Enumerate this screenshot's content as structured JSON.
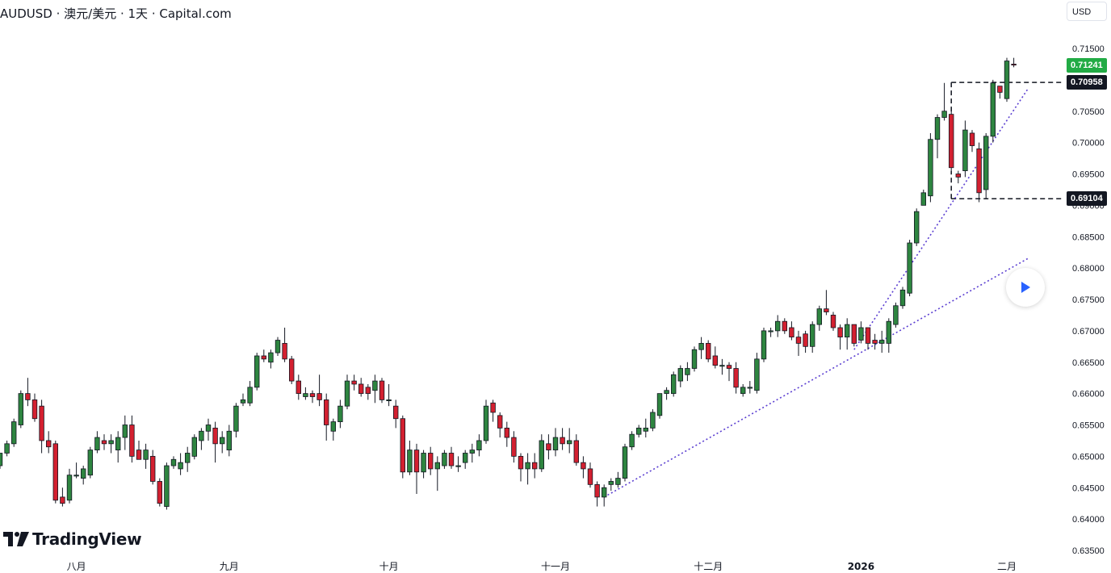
{
  "header": {
    "title": "AUDUSD · 澳元/美元 · 1天 · Capital.com",
    "currency": "USD"
  },
  "brand": {
    "logo_text": "TradingView"
  },
  "price_tags": {
    "last_price": "0.71241",
    "upper_level": "0.70958",
    "lower_level": "0.69104"
  },
  "colors": {
    "up": "#2e8540",
    "down": "#d32030",
    "last_price_tag": "#22ab45",
    "level_tag": "#131722",
    "trendline": "#5b3fd1",
    "play_button": "#2962ff"
  },
  "chart_data": {
    "type": "candlestick",
    "title": "AUDUSD · 澳元/美元 · 1天 · Capital.com",
    "y_axis": {
      "ticks": [
        "0.71500",
        "0.71000",
        "0.70500",
        "0.70000",
        "0.69500",
        "0.69000",
        "0.68500",
        "0.68000",
        "0.67500",
        "0.67000",
        "0.66500",
        "0.66000",
        "0.65500",
        "0.65000",
        "0.64500",
        "0.64000",
        "0.63500"
      ],
      "range": [
        0.635,
        0.715
      ]
    },
    "x_axis": {
      "ticks": [
        "八月",
        "九月",
        "十月",
        "十一月",
        "十二月",
        "2026",
        "二月"
      ],
      "tick_candle_index": [
        11,
        33,
        56,
        80,
        102,
        124,
        145
      ]
    },
    "candles": [
      [
        0.6485,
        0.6505,
        0.648,
        0.6505
      ],
      [
        0.6505,
        0.6525,
        0.65,
        0.652
      ],
      [
        0.652,
        0.656,
        0.6515,
        0.6555
      ],
      [
        0.655,
        0.6605,
        0.6545,
        0.66
      ],
      [
        0.66,
        0.6625,
        0.658,
        0.659
      ],
      [
        0.659,
        0.66,
        0.6555,
        0.656
      ],
      [
        0.658,
        0.659,
        0.6505,
        0.6525
      ],
      [
        0.6525,
        0.654,
        0.6505,
        0.6515
      ],
      [
        0.652,
        0.6525,
        0.6425,
        0.643
      ],
      [
        0.6435,
        0.645,
        0.642,
        0.6425
      ],
      [
        0.643,
        0.648,
        0.6425,
        0.647
      ],
      [
        0.647,
        0.649,
        0.6465,
        0.647
      ],
      [
        0.6465,
        0.6485,
        0.6455,
        0.648
      ],
      [
        0.647,
        0.6515,
        0.6465,
        0.651
      ],
      [
        0.651,
        0.654,
        0.6505,
        0.653
      ],
      [
        0.6525,
        0.6535,
        0.651,
        0.652
      ],
      [
        0.652,
        0.6535,
        0.6505,
        0.6525
      ],
      [
        0.651,
        0.654,
        0.649,
        0.653
      ],
      [
        0.653,
        0.6565,
        0.651,
        0.655
      ],
      [
        0.655,
        0.6565,
        0.649,
        0.65
      ],
      [
        0.651,
        0.6525,
        0.6495,
        0.6495
      ],
      [
        0.6495,
        0.652,
        0.648,
        0.651
      ],
      [
        0.65,
        0.651,
        0.6455,
        0.646
      ],
      [
        0.646,
        0.6465,
        0.642,
        0.6425
      ],
      [
        0.642,
        0.649,
        0.6415,
        0.6485
      ],
      [
        0.6485,
        0.65,
        0.648,
        0.6495
      ],
      [
        0.648,
        0.6505,
        0.647,
        0.649
      ],
      [
        0.649,
        0.6515,
        0.6475,
        0.6505
      ],
      [
        0.65,
        0.6535,
        0.6495,
        0.653
      ],
      [
        0.6525,
        0.6545,
        0.651,
        0.654
      ],
      [
        0.654,
        0.656,
        0.6525,
        0.655
      ],
      [
        0.6545,
        0.6555,
        0.649,
        0.652
      ],
      [
        0.652,
        0.654,
        0.6505,
        0.653
      ],
      [
        0.651,
        0.655,
        0.65,
        0.654
      ],
      [
        0.654,
        0.6585,
        0.653,
        0.658
      ],
      [
        0.6585,
        0.66,
        0.658,
        0.659
      ],
      [
        0.6585,
        0.662,
        0.658,
        0.661
      ],
      [
        0.661,
        0.6665,
        0.6605,
        0.666
      ],
      [
        0.666,
        0.667,
        0.665,
        0.6655
      ],
      [
        0.665,
        0.667,
        0.664,
        0.6665
      ],
      [
        0.6665,
        0.669,
        0.666,
        0.6685
      ],
      [
        0.668,
        0.6705,
        0.665,
        0.6655
      ],
      [
        0.6655,
        0.666,
        0.6615,
        0.662
      ],
      [
        0.662,
        0.663,
        0.659,
        0.66
      ],
      [
        0.6595,
        0.661,
        0.659,
        0.66
      ],
      [
        0.66,
        0.6605,
        0.6585,
        0.6595
      ],
      [
        0.66,
        0.663,
        0.658,
        0.659
      ],
      [
        0.659,
        0.66,
        0.6525,
        0.655
      ],
      [
        0.654,
        0.656,
        0.6525,
        0.6555
      ],
      [
        0.6555,
        0.659,
        0.6545,
        0.658
      ],
      [
        0.658,
        0.663,
        0.6575,
        0.662
      ],
      [
        0.662,
        0.663,
        0.6605,
        0.6615
      ],
      [
        0.6615,
        0.6625,
        0.6595,
        0.66
      ],
      [
        0.661,
        0.6615,
        0.659,
        0.66
      ],
      [
        0.6605,
        0.663,
        0.6585,
        0.662
      ],
      [
        0.662,
        0.6625,
        0.6585,
        0.659
      ],
      [
        0.659,
        0.6615,
        0.658,
        0.659
      ],
      [
        0.658,
        0.659,
        0.6545,
        0.656
      ],
      [
        0.656,
        0.6565,
        0.6465,
        0.6475
      ],
      [
        0.6475,
        0.6525,
        0.647,
        0.651
      ],
      [
        0.651,
        0.652,
        0.644,
        0.6475
      ],
      [
        0.6475,
        0.651,
        0.6465,
        0.6505
      ],
      [
        0.6505,
        0.6515,
        0.647,
        0.648
      ],
      [
        0.648,
        0.65,
        0.6445,
        0.649
      ],
      [
        0.6485,
        0.651,
        0.648,
        0.6505
      ],
      [
        0.6505,
        0.6515,
        0.648,
        0.6485
      ],
      [
        0.6485,
        0.65,
        0.6475,
        0.6485
      ],
      [
        0.649,
        0.651,
        0.648,
        0.6505
      ],
      [
        0.6505,
        0.652,
        0.649,
        0.651
      ],
      [
        0.651,
        0.6535,
        0.65,
        0.6525
      ],
      [
        0.6525,
        0.659,
        0.652,
        0.658
      ],
      [
        0.6585,
        0.659,
        0.6555,
        0.657
      ],
      [
        0.6565,
        0.657,
        0.653,
        0.6545
      ],
      [
        0.6545,
        0.6555,
        0.6515,
        0.653
      ],
      [
        0.653,
        0.654,
        0.649,
        0.65
      ],
      [
        0.65,
        0.6505,
        0.646,
        0.648
      ],
      [
        0.648,
        0.6505,
        0.6455,
        0.649
      ],
      [
        0.649,
        0.6505,
        0.6465,
        0.648
      ],
      [
        0.648,
        0.6535,
        0.6475,
        0.6525
      ],
      [
        0.652,
        0.6535,
        0.6495,
        0.651
      ],
      [
        0.651,
        0.6545,
        0.65,
        0.653
      ],
      [
        0.653,
        0.6545,
        0.651,
        0.652
      ],
      [
        0.652,
        0.6545,
        0.6505,
        0.6525
      ],
      [
        0.6525,
        0.6535,
        0.6485,
        0.649
      ],
      [
        0.649,
        0.65,
        0.6465,
        0.648
      ],
      [
        0.648,
        0.649,
        0.645,
        0.6455
      ],
      [
        0.6455,
        0.646,
        0.642,
        0.6435
      ],
      [
        0.6435,
        0.6455,
        0.642,
        0.645
      ],
      [
        0.6455,
        0.6465,
        0.6445,
        0.646
      ],
      [
        0.6455,
        0.6475,
        0.645,
        0.6465
      ],
      [
        0.6465,
        0.652,
        0.646,
        0.6515
      ],
      [
        0.6515,
        0.654,
        0.651,
        0.6535
      ],
      [
        0.6535,
        0.655,
        0.653,
        0.6545
      ],
      [
        0.654,
        0.656,
        0.653,
        0.6545
      ],
      [
        0.6545,
        0.6575,
        0.654,
        0.657
      ],
      [
        0.6565,
        0.66,
        0.656,
        0.66
      ],
      [
        0.66,
        0.661,
        0.659,
        0.6605
      ],
      [
        0.66,
        0.6635,
        0.6595,
        0.663
      ],
      [
        0.662,
        0.6645,
        0.661,
        0.664
      ],
      [
        0.663,
        0.665,
        0.662,
        0.664
      ],
      [
        0.664,
        0.6675,
        0.6635,
        0.667
      ],
      [
        0.667,
        0.669,
        0.6655,
        0.668
      ],
      [
        0.668,
        0.6685,
        0.665,
        0.6655
      ],
      [
        0.666,
        0.6675,
        0.664,
        0.6645
      ],
      [
        0.6645,
        0.6655,
        0.663,
        0.6645
      ],
      [
        0.6645,
        0.665,
        0.662,
        0.664
      ],
      [
        0.664,
        0.665,
        0.66,
        0.661
      ],
      [
        0.66,
        0.6615,
        0.6595,
        0.661
      ],
      [
        0.661,
        0.662,
        0.66,
        0.661
      ],
      [
        0.6605,
        0.6665,
        0.66,
        0.6655
      ],
      [
        0.6655,
        0.6705,
        0.665,
        0.67
      ],
      [
        0.67,
        0.6705,
        0.669,
        0.67
      ],
      [
        0.67,
        0.6725,
        0.669,
        0.6715
      ],
      [
        0.6715,
        0.672,
        0.6695,
        0.67
      ],
      [
        0.6705,
        0.6715,
        0.6685,
        0.669
      ],
      [
        0.669,
        0.67,
        0.666,
        0.668
      ],
      [
        0.6695,
        0.67,
        0.6665,
        0.6675
      ],
      [
        0.6675,
        0.6715,
        0.6665,
        0.671
      ],
      [
        0.671,
        0.674,
        0.67,
        0.6735
      ],
      [
        0.6735,
        0.6765,
        0.6725,
        0.673
      ],
      [
        0.6725,
        0.673,
        0.67,
        0.6705
      ],
      [
        0.6705,
        0.671,
        0.667,
        0.669
      ],
      [
        0.669,
        0.672,
        0.667,
        0.671
      ],
      [
        0.671,
        0.671,
        0.6675,
        0.668
      ],
      [
        0.6685,
        0.6715,
        0.668,
        0.6705
      ],
      [
        0.6705,
        0.6705,
        0.667,
        0.668
      ],
      [
        0.6685,
        0.6695,
        0.667,
        0.668
      ],
      [
        0.668,
        0.67,
        0.6665,
        0.6685
      ],
      [
        0.668,
        0.672,
        0.6665,
        0.6715
      ],
      [
        0.671,
        0.6745,
        0.6705,
        0.674
      ],
      [
        0.674,
        0.677,
        0.6735,
        0.6765
      ],
      [
        0.676,
        0.6845,
        0.6755,
        0.684
      ],
      [
        0.684,
        0.6895,
        0.6835,
        0.689
      ],
      [
        0.69,
        0.6925,
        0.69,
        0.692
      ],
      [
        0.6915,
        0.7015,
        0.6905,
        0.7005
      ],
      [
        0.7005,
        0.7045,
        0.6975,
        0.704
      ],
      [
        0.704,
        0.7095,
        0.7035,
        0.705
      ],
      [
        0.7045,
        0.7055,
        0.6955,
        0.696
      ],
      [
        0.695,
        0.6955,
        0.6935,
        0.6945
      ],
      [
        0.6955,
        0.7035,
        0.6945,
        0.702
      ],
      [
        0.7015,
        0.702,
        0.6985,
        0.6995
      ],
      [
        0.699,
        0.7,
        0.6905,
        0.692
      ],
      [
        0.6925,
        0.7015,
        0.691,
        0.701
      ],
      [
        0.701,
        0.71,
        0.7,
        0.7095
      ],
      [
        0.709,
        0.709,
        0.707,
        0.708
      ],
      [
        0.707,
        0.7135,
        0.7065,
        0.713
      ],
      [
        0.7125,
        0.7135,
        0.712,
        0.7124
      ]
    ],
    "horizontal_levels": [
      0.70958,
      0.69104
    ],
    "trend_lines": [
      {
        "from": [
          87,
          0.6435
        ],
        "to": [
          148,
          0.6815
        ]
      },
      {
        "from": [
          123,
          0.667
        ],
        "to": [
          148,
          0.7085
        ]
      }
    ],
    "grid": false,
    "legend": "none"
  }
}
